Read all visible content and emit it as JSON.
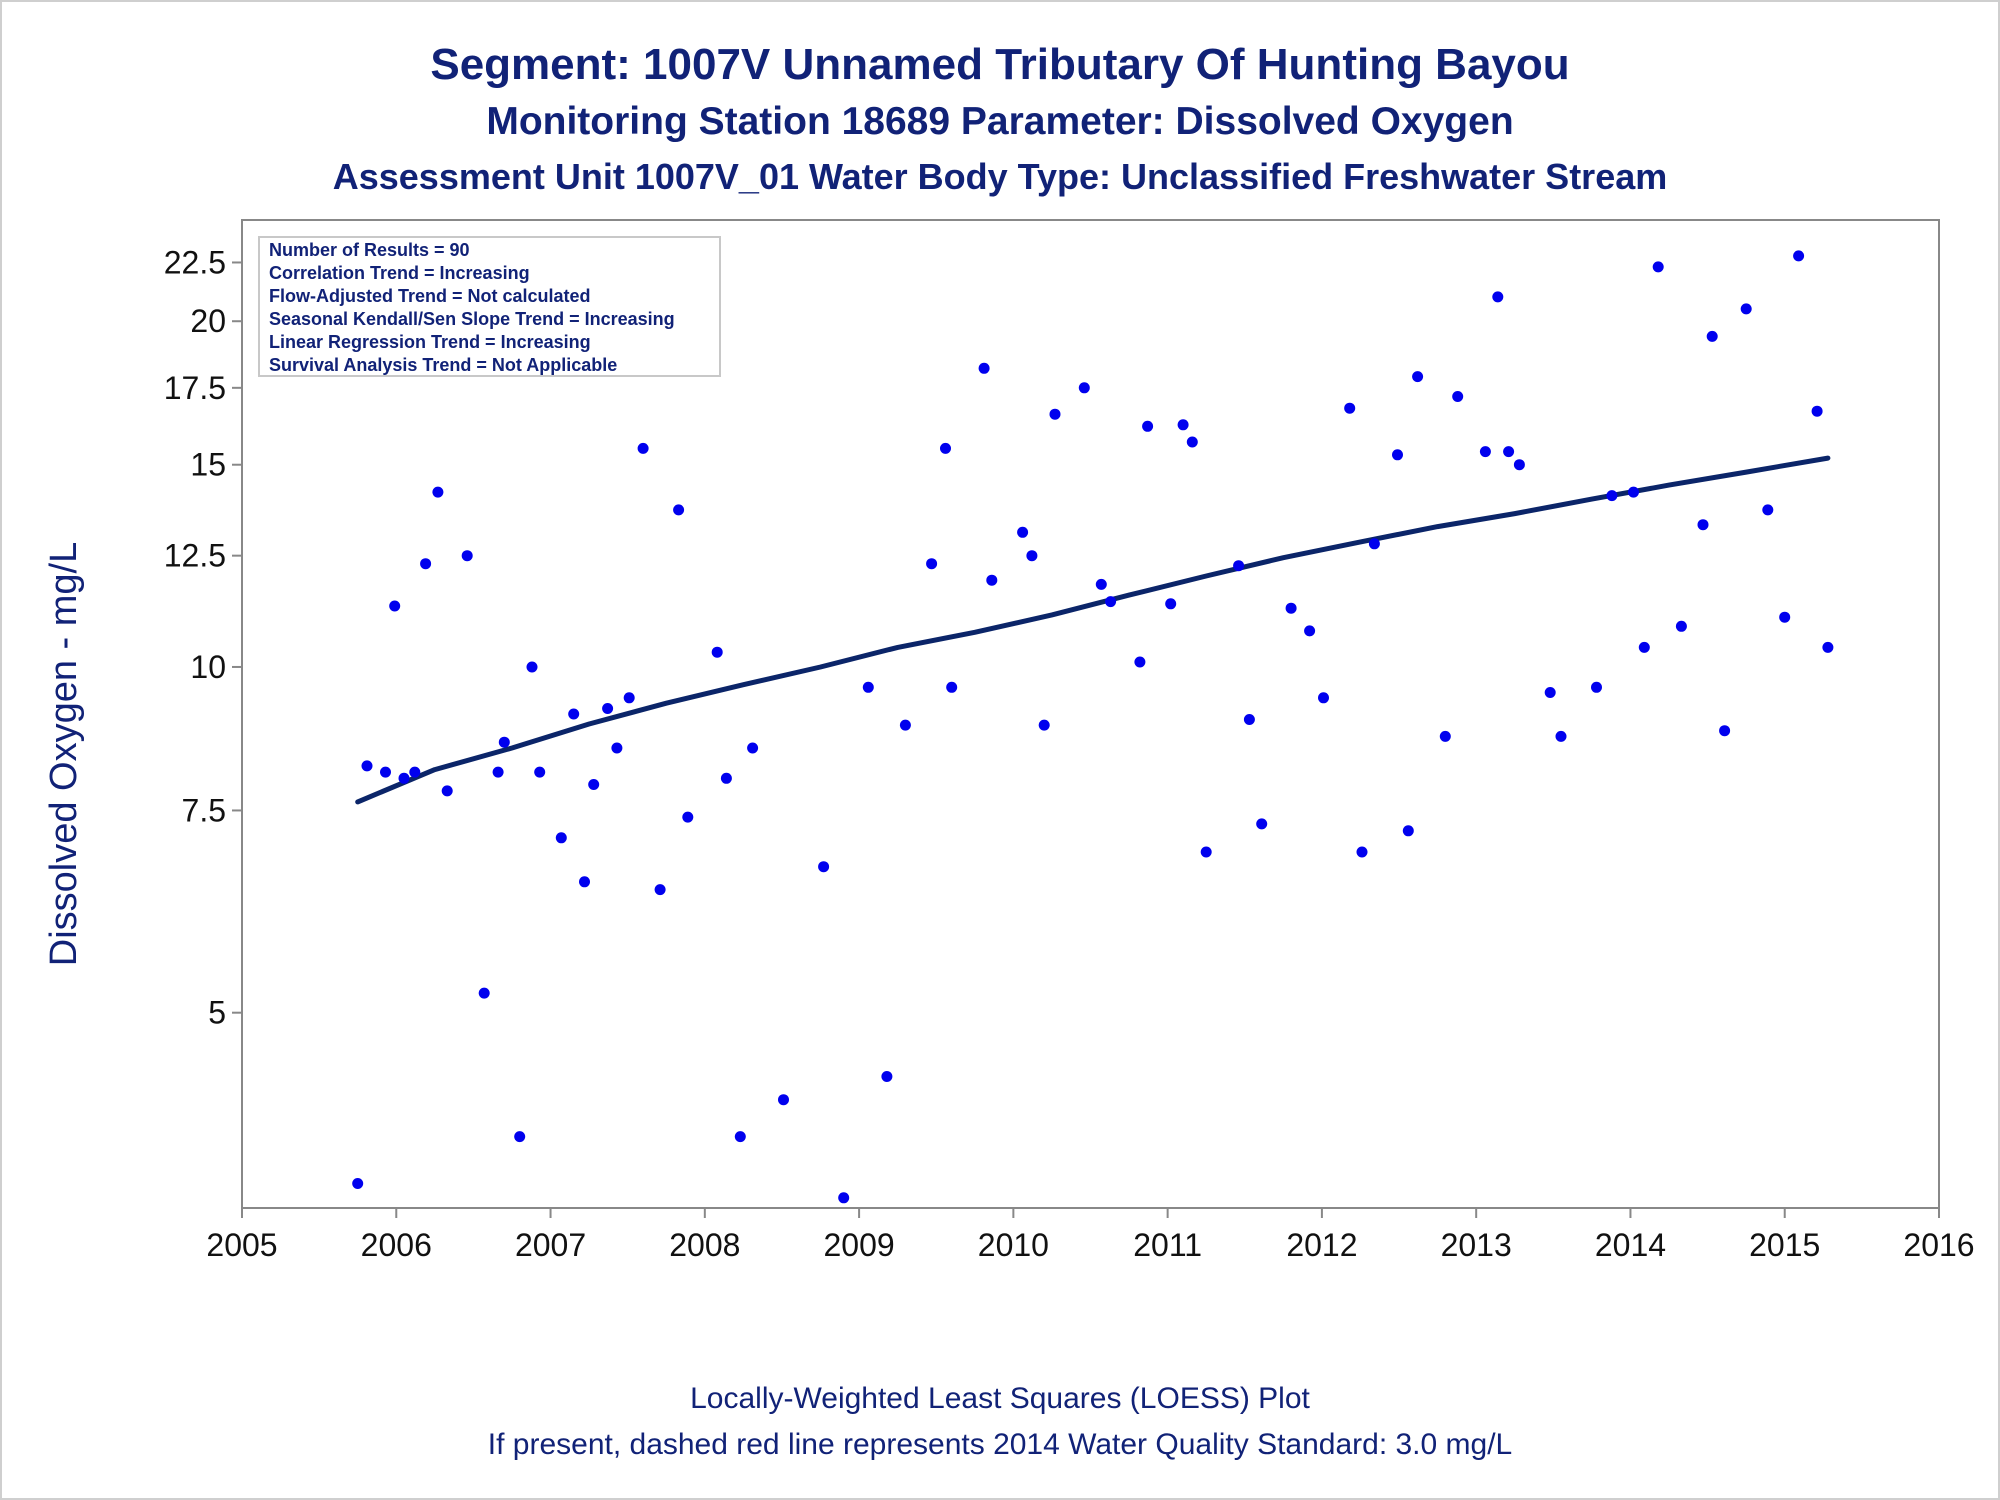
{
  "title": {
    "line1": "Segment: 1007V  Unnamed Tributary Of Hunting Bayou",
    "line2": "Monitoring Station 18689 Parameter: Dissolved Oxygen",
    "line3": "Assessment Unit 1007V_01   Water Body Type: Unclassified Freshwater Stream"
  },
  "footnote": {
    "line1": "Locally-Weighted Least Squares (LOESS) Plot",
    "line2": "If present, dashed red line represents 2014 Water Quality Standard: 3.0 mg/L"
  },
  "stats_box": [
    "Number of Results = 90",
    "Correlation Trend = Increasing",
    "Flow-Adjusted Trend = Not calculated",
    "Seasonal Kendall/Sen Slope Trend = Increasing",
    "Linear Regression Trend = Increasing",
    "Survival Analysis Trend = Not Applicable"
  ],
  "colors": {
    "points": "#0000ee",
    "loess_line": "#0b2569",
    "title": "#112277",
    "axis": "#888888"
  },
  "chart_data": {
    "type": "scatter",
    "xlabel": "",
    "ylabel": "Dissolved Oxygen - mg/L",
    "y_scale": "log",
    "xlim": [
      2005.0,
      2016.0
    ],
    "ylim": [
      3.38,
      24.5
    ],
    "x_ticks": [
      2005,
      2006,
      2007,
      2008,
      2009,
      2010,
      2011,
      2012,
      2013,
      2014,
      2015,
      2016
    ],
    "y_ticks": [
      5,
      7.5,
      10,
      12.5,
      15,
      17.5,
      20,
      22.5
    ],
    "y_tick_labels": [
      "5",
      "7.5",
      "10",
      "12.5",
      "15",
      "17.5",
      "20",
      "22.5"
    ],
    "grid": false,
    "legend": "none",
    "points": [
      [
        2005.75,
        3.55
      ],
      [
        2005.81,
        8.2
      ],
      [
        2005.93,
        8.1
      ],
      [
        2005.99,
        11.3
      ],
      [
        2006.05,
        8.0
      ],
      [
        2006.12,
        8.1
      ],
      [
        2006.19,
        12.3
      ],
      [
        2006.27,
        14.2
      ],
      [
        2006.33,
        7.8
      ],
      [
        2006.46,
        12.5
      ],
      [
        2006.57,
        5.2
      ],
      [
        2006.66,
        8.1
      ],
      [
        2006.7,
        8.6
      ],
      [
        2006.8,
        3.9
      ],
      [
        2006.88,
        10.0
      ],
      [
        2006.93,
        8.1
      ],
      [
        2007.07,
        7.1
      ],
      [
        2007.15,
        9.1
      ],
      [
        2007.22,
        6.5
      ],
      [
        2007.28,
        7.9
      ],
      [
        2007.37,
        9.2
      ],
      [
        2007.43,
        8.5
      ],
      [
        2007.51,
        9.4
      ],
      [
        2007.6,
        15.5
      ],
      [
        2007.71,
        6.4
      ],
      [
        2007.83,
        13.7
      ],
      [
        2007.89,
        7.4
      ],
      [
        2008.08,
        10.3
      ],
      [
        2008.14,
        8.0
      ],
      [
        2008.23,
        3.9
      ],
      [
        2008.31,
        8.5
      ],
      [
        2008.51,
        4.2
      ],
      [
        2008.77,
        6.7
      ],
      [
        2008.9,
        3.45
      ],
      [
        2009.06,
        9.6
      ],
      [
        2009.18,
        4.4
      ],
      [
        2009.3,
        8.9
      ],
      [
        2009.47,
        12.3
      ],
      [
        2009.56,
        15.5
      ],
      [
        2009.6,
        9.6
      ],
      [
        2009.81,
        18.2
      ],
      [
        2009.86,
        11.9
      ],
      [
        2010.06,
        13.1
      ],
      [
        2010.12,
        12.5
      ],
      [
        2010.2,
        8.9
      ],
      [
        2010.27,
        16.6
      ],
      [
        2010.46,
        17.5
      ],
      [
        2010.57,
        11.8
      ],
      [
        2010.63,
        11.4
      ],
      [
        2010.82,
        10.1
      ],
      [
        2010.87,
        16.2
      ],
      [
        2011.02,
        11.35
      ],
      [
        2011.1,
        16.25
      ],
      [
        2011.16,
        15.7
      ],
      [
        2011.25,
        6.9
      ],
      [
        2011.46,
        12.25
      ],
      [
        2011.53,
        9.0
      ],
      [
        2011.61,
        7.3
      ],
      [
        2011.8,
        11.25
      ],
      [
        2011.92,
        10.75
      ],
      [
        2012.01,
        9.4
      ],
      [
        2012.18,
        16.8
      ],
      [
        2012.26,
        6.9
      ],
      [
        2012.34,
        12.8
      ],
      [
        2012.49,
        15.3
      ],
      [
        2012.56,
        7.2
      ],
      [
        2012.62,
        17.9
      ],
      [
        2012.8,
        8.7
      ],
      [
        2012.88,
        17.2
      ],
      [
        2013.06,
        15.4
      ],
      [
        2013.14,
        21.0
      ],
      [
        2013.21,
        15.4
      ],
      [
        2013.28,
        15.0
      ],
      [
        2013.48,
        9.5
      ],
      [
        2013.55,
        8.7
      ],
      [
        2013.78,
        9.6
      ],
      [
        2013.88,
        14.1
      ],
      [
        2014.02,
        14.2
      ],
      [
        2014.09,
        10.4
      ],
      [
        2014.18,
        22.3
      ],
      [
        2014.33,
        10.85
      ],
      [
        2014.47,
        13.3
      ],
      [
        2014.53,
        19.4
      ],
      [
        2014.61,
        8.8
      ],
      [
        2014.75,
        20.5
      ],
      [
        2014.89,
        13.7
      ],
      [
        2015.0,
        11.05
      ],
      [
        2015.09,
        22.8
      ],
      [
        2015.21,
        16.7
      ],
      [
        2015.28,
        10.4
      ]
    ],
    "loess_line": [
      [
        2005.75,
        7.63
      ],
      [
        2006.25,
        8.14
      ],
      [
        2006.75,
        8.5
      ],
      [
        2007.25,
        8.92
      ],
      [
        2007.75,
        9.3
      ],
      [
        2008.25,
        9.65
      ],
      [
        2008.75,
        10.0
      ],
      [
        2009.25,
        10.4
      ],
      [
        2009.75,
        10.72
      ],
      [
        2010.25,
        11.1
      ],
      [
        2010.75,
        11.55
      ],
      [
        2011.25,
        12.0
      ],
      [
        2011.75,
        12.45
      ],
      [
        2012.25,
        12.85
      ],
      [
        2012.75,
        13.25
      ],
      [
        2013.25,
        13.6
      ],
      [
        2013.75,
        14.0
      ],
      [
        2014.25,
        14.4
      ],
      [
        2014.75,
        14.78
      ],
      [
        2015.28,
        15.2
      ]
    ]
  }
}
